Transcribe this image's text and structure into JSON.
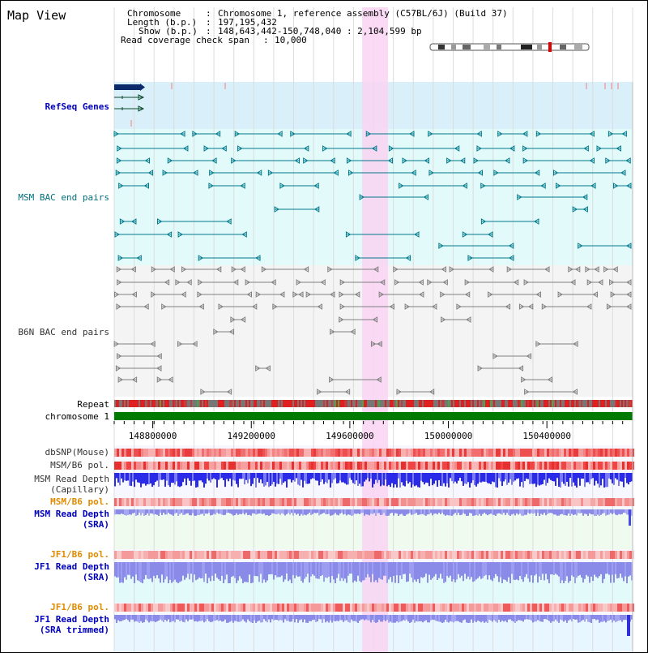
{
  "page": {
    "title": "Map View"
  },
  "info": {
    "chromosome_label": "Chromosome",
    "chromosome_value": "Chromosome 1, reference assembly (C57BL/6J) (Build 37)",
    "length_label": "Length (b.p.)",
    "length_value": "197,195,432",
    "show_label": "Show (b.p.)",
    "show_value": "148,643,442-150,748,040 : 2,104,599 bp",
    "coverage_label": "Read coverage check span",
    "coverage_value": "10,000"
  },
  "tracks": {
    "refseq": "RefSeq Genes",
    "msm_bac": "MSM BAC end pairs",
    "b6n_bac": "B6N BAC end pairs",
    "repeat": "Repeat",
    "chromosome": "chromosome 1",
    "dbsnp": "dbSNP(Mouse)",
    "msm_b6_pol_1": "MSM/B6 pol.",
    "msm_depth_cap_1": "MSM Read Depth",
    "msm_depth_cap_2": "(Capillary)",
    "msm_b6_pol_2": "MSM/B6 pol.",
    "msm_depth_sra_1": "MSM Read Depth",
    "msm_depth_sra_2": "(SRA)",
    "jf1_b6_pol_1": "JF1/B6 pol.",
    "jf1_depth_sra_1": "JF1 Read Depth",
    "jf1_depth_sra_2": "(SRA)",
    "jf1_b6_pol_2": "JF1/B6 pol.",
    "jf1_depth_trim_1": "JF1 Read Depth",
    "jf1_depth_trim_2": "(SRA trimmed)"
  },
  "ruler": {
    "ticks": [
      {
        "pos": 148800000,
        "label": "148800000"
      },
      {
        "pos": 149200000,
        "label": "149200000"
      },
      {
        "pos": 149600000,
        "label": "149600000"
      },
      {
        "pos": 150000000,
        "label": "150000000"
      },
      {
        "pos": 150400000,
        "label": "150400000"
      }
    ],
    "start": 148643442,
    "end": 150748040
  },
  "highlight": {
    "start": 149650000,
    "end": 149755000
  },
  "colors": {
    "refseq_bg": "#d9f0fb",
    "msm_bg": "#e2fafa",
    "highlight": "#f9d4f2",
    "chromosome_bar": "#007a00",
    "teal": "#007a8c",
    "grey": "#808080",
    "depth_blue": "#2a2af0",
    "depth_purple": "#8a8af0"
  }
}
